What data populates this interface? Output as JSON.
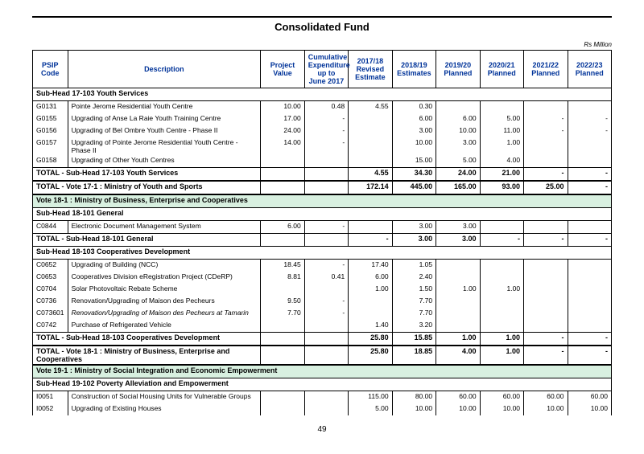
{
  "page": {
    "title": "Consolidated Fund",
    "unit": "Rs Million",
    "number": "49"
  },
  "headers": {
    "code": "PSIP Code",
    "desc": "Description",
    "pv": "Project Value",
    "cum": "Cumulative Expenditure up to June 2017",
    "c1": "2017/18 Revised Estimate",
    "c2": "2018/19 Estimates",
    "c3": "2019/20 Planned",
    "c4": "2020/21 Planned",
    "c5": "2021/22 Planned",
    "c6": "2022/23 Planned"
  },
  "s1": {
    "hdr": "Sub-Head 17-103 Youth Services",
    "r1": {
      "code": "G0131",
      "desc": "Pointe Jerome Residential Youth Centre",
      "pv": "10.00",
      "cum": "0.48",
      "c1": "4.55",
      "c2": "0.30",
      "c3": "",
      "c4": "",
      "c5": "",
      "c6": ""
    },
    "r2": {
      "code": "G0155",
      "desc": "Upgrading of Anse La Raie Youth Training Centre",
      "pv": "17.00",
      "cum": "-",
      "c1": "",
      "c2": "6.00",
      "c3": "6.00",
      "c4": "5.00",
      "c5": "-",
      "c6": "-"
    },
    "r3": {
      "code": "G0156",
      "desc": "Upgrading of Bel Ombre Youth Centre - Phase II",
      "pv": "24.00",
      "cum": "-",
      "c1": "",
      "c2": "3.00",
      "c3": "10.00",
      "c4": "11.00",
      "c5": "-",
      "c6": "-"
    },
    "r4": {
      "code": "G0157",
      "desc": "Upgrading of Pointe Jerome Residential Youth Centre - Phase II",
      "pv": "14.00",
      "cum": "-",
      "c1": "",
      "c2": "10.00",
      "c3": "3.00",
      "c4": "1.00",
      "c5": "",
      "c6": ""
    },
    "r5": {
      "code": "G0158",
      "desc": "Upgrading of Other Youth Centres",
      "pv": "",
      "cum": "",
      "c1": "",
      "c2": "15.00",
      "c3": "5.00",
      "c4": "4.00",
      "c5": "",
      "c6": ""
    },
    "tot": {
      "label": "TOTAL - Sub-Head 17-103 Youth Services",
      "c1": "4.55",
      "c2": "34.30",
      "c3": "24.00",
      "c4": "21.00",
      "c5": "-",
      "c6": "-"
    },
    "vote": {
      "label": "TOTAL - Vote 17-1 :  Ministry of Youth and Sports",
      "c1": "172.14",
      "c2": "445.00",
      "c3": "165.00",
      "c4": "93.00",
      "c5": "25.00",
      "c6": "-"
    }
  },
  "v18": {
    "hdr": "Vote 18-1 : Ministry of Business, Enterprise and Cooperatives"
  },
  "s2": {
    "hdr": "Sub-Head 18-101 General",
    "r1": {
      "code": "C0844",
      "desc": "Electronic Document Management System",
      "pv": "6.00",
      "cum": "-",
      "c1": "",
      "c2": "3.00",
      "c3": "3.00",
      "c4": "",
      "c5": "",
      "c6": ""
    },
    "tot": {
      "label": "TOTAL - Sub-Head 18-101 General",
      "c1": "-",
      "c2": "3.00",
      "c3": "3.00",
      "c4": "-",
      "c5": "-",
      "c6": "-"
    }
  },
  "s3": {
    "hdr": "Sub-Head 18-103 Cooperatives Development",
    "r1": {
      "code": "C0652",
      "desc": "Upgrading of Building (NCC)",
      "pv": "18.45",
      "cum": "-",
      "c1": "17.40",
      "c2": "1.05",
      "c3": "",
      "c4": "",
      "c5": "",
      "c6": ""
    },
    "r2": {
      "code": "C0653",
      "desc": "Cooperatives Division eRegistration Project (CDeRP)",
      "pv": "8.81",
      "cum": "0.41",
      "c1": "6.00",
      "c2": "2.40",
      "c3": "",
      "c4": "",
      "c5": "",
      "c6": ""
    },
    "r3": {
      "code": "C0704",
      "desc": "Solar Photovoltaic Rebate Scheme",
      "pv": "",
      "cum": "",
      "c1": "1.00",
      "c2": "1.50",
      "c3": "1.00",
      "c4": "1.00",
      "c5": "",
      "c6": ""
    },
    "r4": {
      "code": "C0736",
      "desc": "Renovation/Upgrading of Maison des Pecheurs",
      "pv": "9.50",
      "cum": "-",
      "c1": "",
      "c2": "7.70",
      "c3": "",
      "c4": "",
      "c5": "",
      "c6": ""
    },
    "r5": {
      "code": "C073601",
      "desc": "Renovation/Upgrading of Maison  des Pecheurs at Tamarin",
      "pv": "7.70",
      "cum": "-",
      "c1": "",
      "c2": "7.70",
      "c3": "",
      "c4": "",
      "c5": "",
      "c6": ""
    },
    "r6": {
      "code": "C0742",
      "desc": "Purchase of Refrigerated Vehicle",
      "pv": "",
      "cum": "",
      "c1": "1.40",
      "c2": "3.20",
      "c3": "",
      "c4": "",
      "c5": "",
      "c6": ""
    },
    "tot": {
      "label": "TOTAL - Sub-Head 18-103 Cooperatives Development",
      "c1": "25.80",
      "c2": "15.85",
      "c3": "1.00",
      "c4": "1.00",
      "c5": "-",
      "c6": "-"
    },
    "vote": {
      "label": "TOTAL - Vote 18-1 :  Ministry of Business, Enterprise and Cooperatives",
      "c1": "25.80",
      "c2": "18.85",
      "c3": "4.00",
      "c4": "1.00",
      "c5": "-",
      "c6": "-"
    }
  },
  "v19": {
    "hdr": "Vote 19-1 : Ministry of Social Integration and Economic Empowerment"
  },
  "s4": {
    "hdr": "Sub-Head 19-102 Poverty Alleviation and Empowerment",
    "r1": {
      "code": "I0051",
      "desc": "Construction of Social Housing Units for Vulnerable Groups",
      "pv": "",
      "cum": "",
      "c1": "115.00",
      "c2": "80.00",
      "c3": "60.00",
      "c4": "60.00",
      "c5": "60.00",
      "c6": "60.00"
    },
    "r2": {
      "code": "I0052",
      "desc": "Upgrading of Existing Houses",
      "pv": "",
      "cum": "",
      "c1": "5.00",
      "c2": "10.00",
      "c3": "10.00",
      "c4": "10.00",
      "c5": "10.00",
      "c6": "10.00"
    }
  }
}
